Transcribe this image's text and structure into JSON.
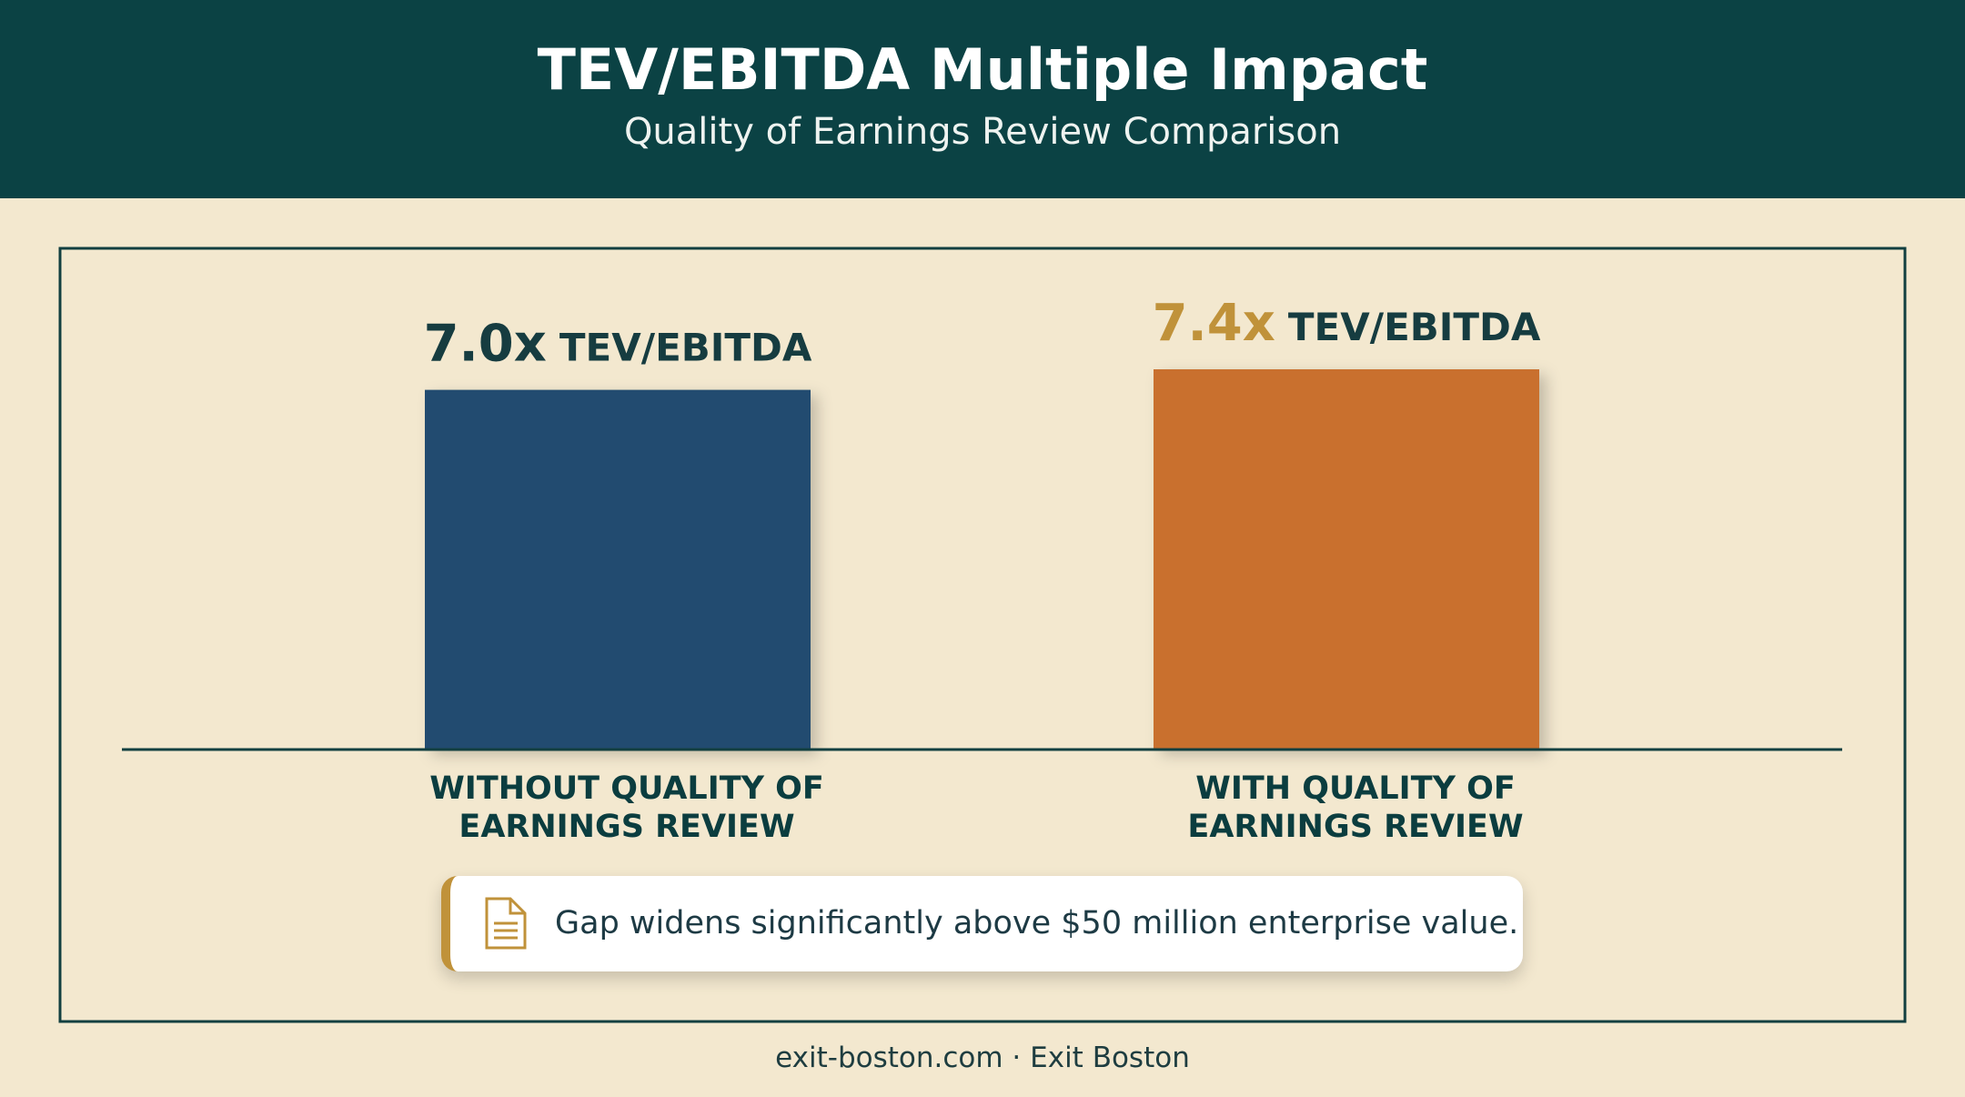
{
  "chart_data": {
    "type": "bar",
    "title": "TEV/EBITDA Multiple Impact",
    "subtitle": "Quality of Earnings Review Comparison",
    "categories": [
      "WITHOUT QUALITY OF EARNINGS REVIEW",
      "WITH QUALITY OF EARNINGS REVIEW"
    ],
    "values": [
      7.0,
      7.4
    ],
    "value_labels": [
      "7.0x",
      "7.4x"
    ],
    "value_unit_label": "TEV/EBITDA",
    "colors": [
      "#214b70",
      "#c9702f"
    ],
    "value_label_colors": [
      "#163c40",
      "#c0923a"
    ],
    "ylim": [
      0,
      7.4
    ],
    "note": "Gap widens significantly above $50 million enterprise value.",
    "footer": "exit-boston.com · Exit Boston"
  }
}
